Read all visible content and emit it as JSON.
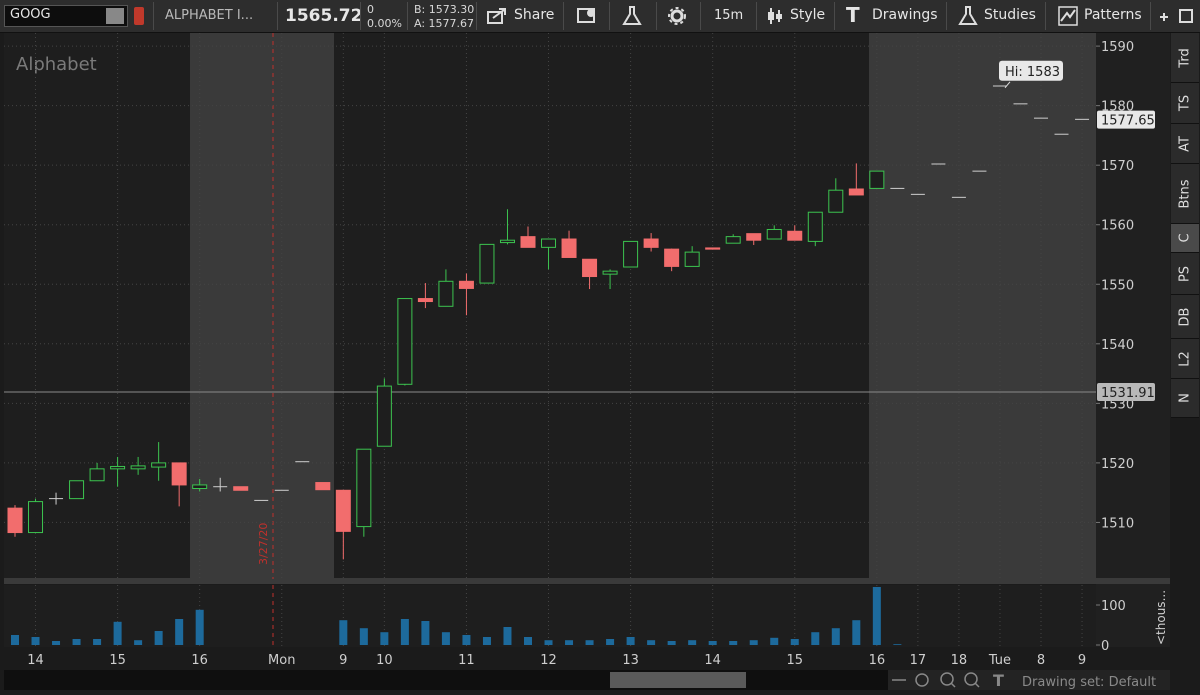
{
  "toolbar": {
    "symbol": "GOOG",
    "company": "ALPHABET I...",
    "last": "1565.72",
    "change": "0",
    "change_percent": "0.00%",
    "bid": "B: 1573.30",
    "ask": "A: 1577.67",
    "share": "Share",
    "interval": "15m",
    "style": "Style",
    "drawings": "Drawings",
    "studies": "Studies",
    "patterns": "Patterns"
  },
  "side_tabs": [
    "Trd",
    "TS",
    "AT",
    "Btns",
    "C",
    "PS",
    "DB",
    "L2",
    "N"
  ],
  "footer": {
    "drawing_set": "Drawing set: Default"
  },
  "chart_data": {
    "type": "candlestick",
    "title": "Alphabet",
    "marker_label": "3/27/20",
    "categories": [
      null,
      "14",
      null,
      null,
      null,
      "15",
      null,
      null,
      null,
      "16",
      null,
      null,
      null,
      "Mon",
      null,
      null,
      "9",
      null,
      "10",
      null,
      null,
      null,
      "11",
      null,
      null,
      null,
      "12",
      null,
      null,
      null,
      "13",
      null,
      null,
      null,
      "14",
      null,
      null,
      null,
      "15",
      null,
      null,
      null,
      "16",
      null,
      "17",
      null,
      "18",
      null,
      "Tue",
      null,
      "8",
      null,
      "9"
    ],
    "open": [
      1512.4,
      1508.3,
      1514,
      1514,
      1517,
      1519,
      1519,
      1519.3,
      1520,
      1515.7,
      1516,
      1516,
      1513.7,
      1515.4,
      1520.2,
      1516.7,
      1515.4,
      1509.3,
      1522.8,
      1533.2,
      1547.6,
      1546.3,
      1550.5,
      1550.2,
      1557,
      1558,
      1556.2,
      1557.6,
      1554.2,
      1551.7,
      1552.9,
      1557.6,
      1555.9,
      1553,
      1556.1,
      1556.9,
      1558.5,
      1557.6,
      1558.9,
      1557.2,
      1562.1,
      1566,
      1566.1,
      1566.1,
      1565.1,
      1570.2,
      1564.6,
      1569,
      1583.3,
      1580.3,
      1577.9,
      1575.2,
      1577.7
    ],
    "high": [
      1512.9,
      1514,
      1515,
      1517,
      1520,
      1521,
      1521,
      1523.5,
      1520,
      1517.3,
      1517.5,
      1516,
      1513.7,
      1515.4,
      1520.2,
      1516.7,
      1515.4,
      1522.3,
      1534.2,
      1547.6,
      1550.2,
      1552.5,
      1551.8,
      1556.7,
      1562.6,
      1559.7,
      1557.6,
      1559,
      1554.2,
      1552.5,
      1557.2,
      1558.6,
      1556,
      1556.4,
      1556.1,
      1558.4,
      1558.5,
      1559.9,
      1559.9,
      1562.1,
      1567.8,
      1570.3,
      1569,
      1566.1,
      1565.1,
      1570.2,
      1564.6,
      1569,
      1583.3,
      1580.3,
      1577.9,
      1575.2,
      1577.7
    ],
    "low": [
      1507.6,
      1508.3,
      1513,
      1514,
      1517,
      1516,
      1518,
      1517,
      1512.7,
      1515.2,
      1515.2,
      1515.4,
      1513.7,
      1515.4,
      1520.2,
      1515.5,
      1503.8,
      1507.6,
      1522.8,
      1533,
      1546,
      1546.3,
      1544.8,
      1550.2,
      1556.7,
      1556.2,
      1552.5,
      1554.5,
      1549.2,
      1549.2,
      1552.9,
      1555.5,
      1552.2,
      1553,
      1555.9,
      1556.9,
      1556.6,
      1557.6,
      1557.4,
      1556.4,
      1562.1,
      1565,
      1566.1,
      1566.1,
      1565.1,
      1570.2,
      1564.6,
      1569,
      1583.3,
      1580.3,
      1577.9,
      1575.2,
      1577.7
    ],
    "close": [
      1508.3,
      1513.5,
      1514,
      1517,
      1519,
      1519.4,
      1519.5,
      1520,
      1516.3,
      1516.3,
      1516,
      1515.4,
      1513.7,
      1515.4,
      1520.2,
      1515.5,
      1508.5,
      1522.3,
      1532.9,
      1547.6,
      1547.1,
      1550.5,
      1549.3,
      1556.7,
      1557.4,
      1556.2,
      1557.6,
      1554.5,
      1551.3,
      1552.2,
      1557.2,
      1556.2,
      1553,
      1555.4,
      1555.9,
      1558,
      1557.4,
      1559.2,
      1557.4,
      1562.1,
      1565.8,
      1565,
      1569,
      1566.1,
      1565.1,
      1570.2,
      1564.6,
      1569,
      1583.3,
      1580.3,
      1577.9,
      1575.2,
      1577.7
    ],
    "volume": [
      25,
      20,
      10,
      15,
      15,
      58,
      12,
      35,
      65,
      88,
      null,
      null,
      null,
      null,
      null,
      null,
      62,
      42,
      32,
      65,
      60,
      32,
      25,
      20,
      45,
      20,
      12,
      12,
      12,
      15,
      20,
      12,
      10,
      12,
      10,
      10,
      12,
      18,
      15,
      32,
      42,
      62,
      145,
      2,
      null,
      null,
      null,
      null,
      null,
      null,
      null,
      null,
      null
    ],
    "up_color": "#3cc44f",
    "down_color": "#f26d6d",
    "volume_color": "#1d6a9c",
    "ylim": [
      1500.5,
      1592.2
    ],
    "yticks": [
      1510,
      1520,
      1530,
      1540,
      1550,
      1560,
      1570,
      1580,
      1590
    ],
    "volume_ylim": [
      0,
      145
    ],
    "volume_yticks": [
      0,
      100
    ],
    "volume_axis_label": "<thous...",
    "last_price": 1577.65,
    "reference_price": 1531.91,
    "high_label": {
      "value": 1583,
      "label": "Hi: 1583"
    },
    "grid": true
  }
}
